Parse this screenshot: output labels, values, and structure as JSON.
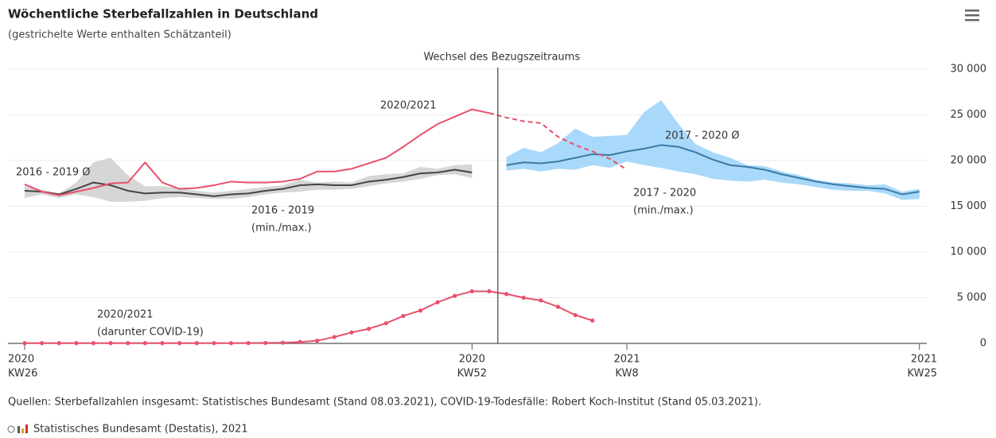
{
  "chart_data": {
    "type": "line",
    "title": "Wöchentliche Sterbefallzahlen in Deutschland",
    "subtitle": "(gestrichelte Werte enthalten Schätzanteil)",
    "source": "Quellen: Sterbefallzahlen insgesamt: Statistisches Bundesamt (Stand 08.03.2021), COVID-19-Todesfälle: Robert Koch-Institut (Stand 05.03.2021).",
    "credit": "Statistisches Bundesamt (Destatis), 2021",
    "annotation": {
      "text": "Wechsel des Bezugszeitraums",
      "x": 27.5
    },
    "xlim": [
      -0.97,
      52.43
    ],
    "xticks": [
      {
        "value": 0,
        "label": "2020",
        "sublabel": "KW26"
      },
      {
        "value": 26,
        "label": "2020",
        "sublabel": "KW52"
      },
      {
        "value": 35,
        "label": "2021",
        "sublabel": "KW8"
      },
      {
        "value": 52,
        "label": "2021",
        "sublabel": "KW25"
      }
    ],
    "ylim": [
      0,
      30000
    ],
    "yticks": [
      0,
      {
        "value": 5000,
        "label": "5 000"
      },
      {
        "value": 10000,
        "label": "10 000"
      },
      {
        "value": 15000,
        "label": "15 000"
      },
      {
        "value": 20000,
        "label": "20 000"
      },
      {
        "value": 25000,
        "label": "25 000"
      },
      {
        "value": 30000,
        "label": "30 000"
      }
    ],
    "grid": true,
    "series": [
      {
        "name": [
          "2016 - 2019",
          "(min./max.)"
        ],
        "kind": "band",
        "color": "#d6d6d6",
        "label_color": "#bdbdbd",
        "x": [
          0,
          1,
          2,
          3,
          4,
          5,
          6,
          7,
          8,
          9,
          10,
          11,
          12,
          13,
          14,
          15,
          16,
          17,
          18,
          19,
          20,
          21,
          22,
          23,
          24,
          25,
          26
        ],
        "upper": [
          17200,
          16800,
          16400,
          17600,
          19800,
          20300,
          18400,
          17200,
          17200,
          17000,
          16700,
          16500,
          16700,
          16900,
          17100,
          17300,
          17900,
          17600,
          17700,
          17600,
          18300,
          18500,
          18600,
          19300,
          19100,
          19500,
          19600
        ],
        "lower": [
          15900,
          16300,
          15900,
          16300,
          16000,
          15500,
          15500,
          15600,
          15900,
          16000,
          15900,
          15800,
          15800,
          16000,
          16300,
          16500,
          16600,
          16800,
          16800,
          16900,
          17200,
          17500,
          17700,
          18000,
          18400,
          18500,
          18100
        ]
      },
      {
        "name": [
          "2016 - 2019 Ø"
        ],
        "kind": "line",
        "color": "#444444",
        "label_color": "#333333",
        "x": [
          0,
          1,
          2,
          3,
          4,
          5,
          6,
          7,
          8,
          9,
          10,
          11,
          12,
          13,
          14,
          15,
          16,
          17,
          18,
          19,
          20,
          21,
          22,
          23,
          24,
          25,
          26
        ],
        "values": [
          16700,
          16600,
          16300,
          16900,
          17600,
          17300,
          16700,
          16400,
          16500,
          16500,
          16300,
          16100,
          16300,
          16400,
          16700,
          16900,
          17300,
          17400,
          17300,
          17300,
          17700,
          17900,
          18200,
          18600,
          18700,
          19000,
          18700
        ]
      },
      {
        "name": [
          "2017 - 2020",
          "(min./max.)"
        ],
        "kind": "band",
        "color": "#a9d9fa",
        "label_color": "#92cdf4",
        "x": [
          28,
          29,
          30,
          31,
          32,
          33,
          34,
          35,
          36,
          37,
          38,
          39,
          40,
          41,
          42,
          43,
          44,
          45,
          46,
          47,
          48,
          49,
          50,
          51,
          52
        ],
        "upper": [
          20400,
          21400,
          20900,
          21900,
          23500,
          22600,
          22700,
          22800,
          25300,
          26600,
          24000,
          21800,
          20900,
          20300,
          19500,
          19400,
          18800,
          18400,
          17900,
          17600,
          17500,
          17300,
          17400,
          16600,
          16900
        ],
        "lower": [
          18900,
          19100,
          18800,
          19100,
          19000,
          19500,
          19200,
          19900,
          19500,
          19200,
          18800,
          18500,
          18000,
          17800,
          17700,
          17900,
          17600,
          17400,
          17100,
          16800,
          16700,
          16700,
          16400,
          15700,
          15800
        ]
      },
      {
        "name": [
          "2017 - 2020 Ø"
        ],
        "kind": "line",
        "color": "#3a7aa3",
        "label_color": "#2f6f93",
        "x": [
          28,
          29,
          30,
          31,
          32,
          33,
          34,
          35,
          36,
          37,
          38,
          39,
          40,
          41,
          42,
          43,
          44,
          45,
          46,
          47,
          48,
          49,
          50,
          51,
          52
        ],
        "values": [
          19500,
          19800,
          19700,
          19900,
          20300,
          20700,
          20600,
          21000,
          21300,
          21700,
          21500,
          20900,
          20100,
          19500,
          19300,
          19000,
          18500,
          18100,
          17700,
          17400,
          17200,
          17000,
          16900,
          16300,
          16600
        ]
      },
      {
        "name": [
          "2020/2021"
        ],
        "kind": "line",
        "color": "#e8506a",
        "label_color": "#e8506a",
        "x": [
          0,
          1,
          2,
          3,
          4,
          5,
          6,
          7,
          8,
          9,
          10,
          11,
          12,
          13,
          14,
          15,
          16,
          17,
          18,
          19,
          20,
          21,
          22,
          23,
          24,
          25,
          26,
          27
        ],
        "values": [
          17400,
          16600,
          16200,
          16600,
          17000,
          17500,
          17600,
          19800,
          17600,
          16900,
          17000,
          17300,
          17700,
          17600,
          17600,
          17700,
          18000,
          18800,
          18800,
          19100,
          19700,
          20300,
          21500,
          22800,
          24000,
          24800,
          25600,
          25200
        ]
      },
      {
        "kind": "line",
        "dashed": true,
        "color": "#e8506a",
        "x": [
          27,
          28,
          29,
          30,
          31,
          32,
          33,
          34,
          35
        ],
        "values": [
          25200,
          24700,
          24300,
          24100,
          22600,
          21700,
          21000,
          20200,
          19000
        ]
      },
      {
        "name": [
          "2020/2021",
          "(darunter COVID-19)"
        ],
        "kind": "line",
        "markers": true,
        "color": "#e8506a",
        "label_color": "#e8506a",
        "x": [
          0,
          1,
          2,
          3,
          4,
          5,
          6,
          7,
          8,
          9,
          10,
          11,
          12,
          13,
          14,
          15,
          16,
          17,
          18,
          19,
          20,
          21,
          22,
          23,
          24,
          25,
          26,
          27,
          28,
          29,
          30,
          31,
          32,
          33
        ],
        "values": [
          30,
          30,
          30,
          30,
          30,
          30,
          30,
          30,
          30,
          30,
          30,
          30,
          30,
          40,
          50,
          80,
          150,
          300,
          700,
          1200,
          1600,
          2200,
          3000,
          3600,
          4500,
          5200,
          5700,
          5700,
          5400,
          5000,
          4700,
          4000,
          3100,
          2500
        ]
      }
    ]
  }
}
